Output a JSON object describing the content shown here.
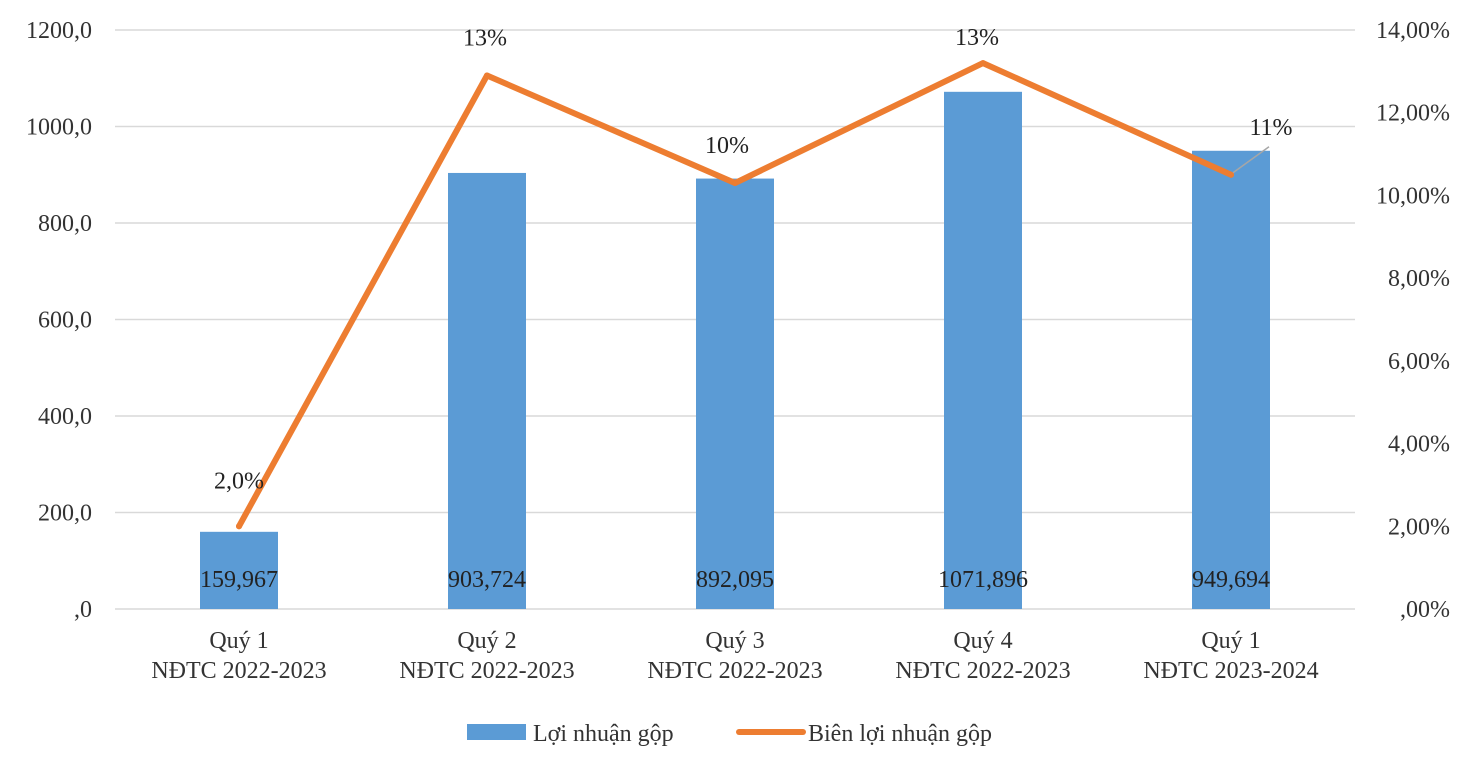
{
  "chart_data": {
    "type": "bar",
    "title": "",
    "xlabel": "",
    "ylabel": "",
    "categories": [
      [
        "Quý 1",
        "NĐTC 2022-2023"
      ],
      [
        "Quý 2",
        "NĐTC 2022-2023"
      ],
      [
        "Quý 3",
        "NĐTC 2022-2023"
      ],
      [
        "Quý 4",
        "NĐTC 2022-2023"
      ],
      [
        "Quý 1",
        "NĐTC 2023-2024"
      ]
    ],
    "series": [
      {
        "name": "Lợi nhuận gộp",
        "type": "bar",
        "axis": "left",
        "color": "#5b9bd5",
        "values": [
          159.967,
          903.724,
          892.095,
          1071.896,
          949.694
        ],
        "labels": [
          "159,967",
          "903,724",
          "892,095",
          "1071,896",
          "949,694"
        ]
      },
      {
        "name": "Biên lợi nhuận gộp",
        "type": "line",
        "axis": "right",
        "color": "#ed7d31",
        "values": [
          2.0,
          12.9,
          10.3,
          13.2,
          10.5
        ],
        "labels": [
          "2,0%",
          "13%",
          "10%",
          "13%",
          "11%"
        ]
      }
    ],
    "y_left": {
      "range": [
        0,
        1200
      ],
      "ticks": [
        0,
        200,
        400,
        600,
        800,
        1000,
        1200
      ],
      "tick_labels": [
        ",0",
        "200,0",
        "400,0",
        "600,0",
        "800,0",
        "1000,0",
        "1200,0"
      ]
    },
    "y_right": {
      "range": [
        0,
        14
      ],
      "ticks": [
        0,
        2,
        4,
        6,
        8,
        10,
        12,
        14
      ],
      "tick_labels": [
        ",00%",
        "2,00%",
        "4,00%",
        "6,00%",
        "8,00%",
        "10,00%",
        "12,00%",
        "14,00%"
      ]
    },
    "grid": true,
    "legend": "bottom"
  }
}
